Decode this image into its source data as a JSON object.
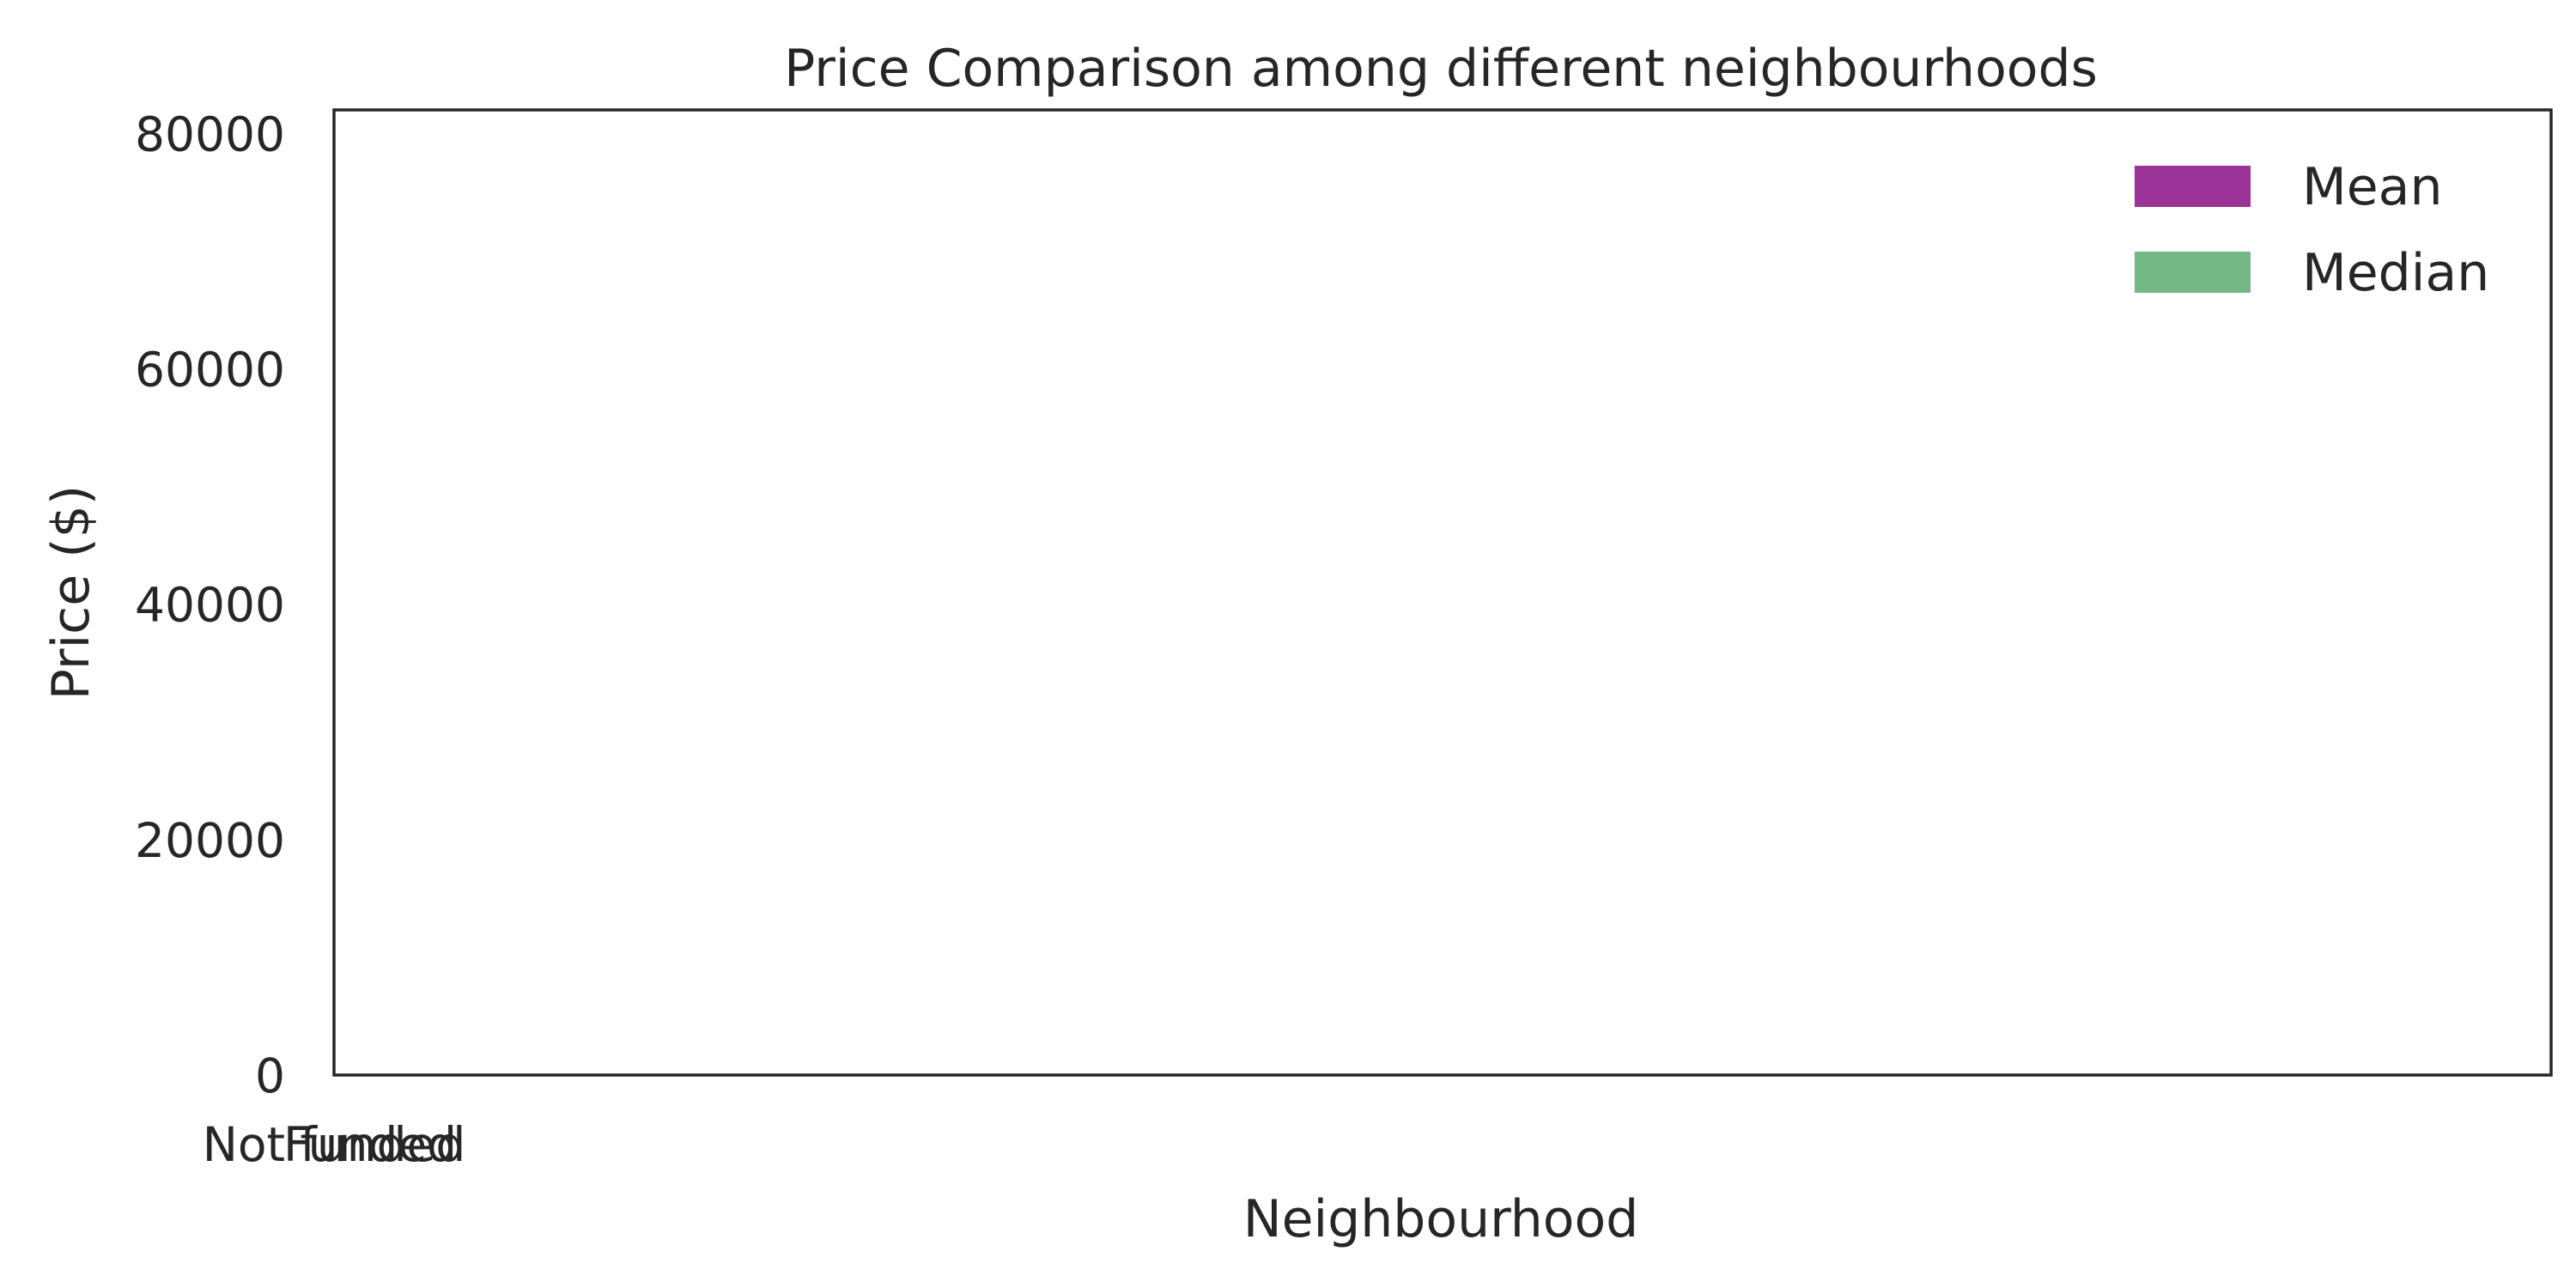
{
  "chart_data": {
    "type": "bar",
    "title": "Price Comparison among different neighbourhoods",
    "xlabel": "Neighbourhood",
    "ylabel": "Price ($)",
    "categories": [
      "Not funded",
      "Funded"
    ],
    "series": [
      {
        "name": "Mean",
        "color": "#9b3399",
        "values": [
          null,
          null
        ]
      },
      {
        "name": "Median",
        "color": "#74b886",
        "values": [
          null,
          null
        ]
      }
    ],
    "ylim": [
      0,
      82000
    ],
    "yticks": [
      0,
      20000,
      40000,
      60000,
      80000
    ],
    "grid": false,
    "legend_position": "top-right"
  }
}
